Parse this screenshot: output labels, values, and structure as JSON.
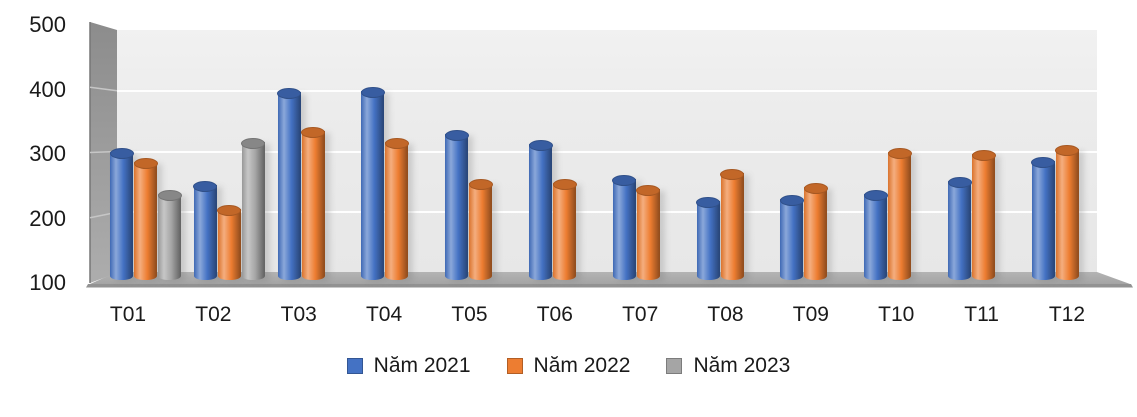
{
  "chart_data": {
    "type": "bar",
    "style": "3d-cylinder",
    "categories": [
      "T01",
      "T02",
      "T03",
      "T04",
      "T05",
      "T06",
      "T07",
      "T08",
      "T09",
      "T10",
      "T11",
      "T12"
    ],
    "series": [
      {
        "name": "Năm 2021",
        "color": "#4472C4",
        "values": [
          310,
          257,
          408,
          410,
          340,
          323,
          267,
          231,
          234,
          242,
          263,
          296
        ]
      },
      {
        "name": "Năm 2022",
        "color": "#ED7D31",
        "values": [
          294,
          219,
          345,
          327,
          260,
          261,
          250,
          276,
          254,
          310,
          307,
          315
        ]
      },
      {
        "name": "Năm 2023",
        "color": "#A5A5A5",
        "values": [
          243,
          327,
          null,
          null,
          null,
          null,
          null,
          null,
          null,
          null,
          null,
          null
        ]
      }
    ],
    "title": "",
    "xlabel": "",
    "ylabel": "",
    "ylim": [
      100,
      500
    ],
    "yticks": [
      100,
      200,
      300,
      400,
      500
    ],
    "grid": true,
    "legend_position": "bottom"
  },
  "colors": {
    "plot_background": "#EBEBEB",
    "side_wall_top": "#8C8C8C",
    "side_wall_bottom": "#ADADAD",
    "floor": "#ABABAB",
    "floor_edge": "#929292",
    "gridline": "#FAFAFA",
    "text": "#1A1A1A"
  }
}
